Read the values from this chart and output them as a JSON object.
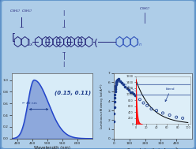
{
  "bg_outer": "#4a7fbf",
  "bg_inner": "#aecde8",
  "bg_inner2": "#c8dff0",
  "plot_bg": "#d8ecf8",
  "dot_color": "#1a3a8a",
  "line_color": "#2244cc",
  "fill_color": "#3355bb",
  "el_peak": 455,
  "cie_text": "(0.15, 0.11)",
  "wavelength_label": "Wavelength (nm)",
  "el_ylabel": "Normalized EL intensity (a.u.)",
  "cd_ylabel": "Luminous efficiency (cd A",
  "cd_xlabel": "Current density (mA cm",
  "blend_text": "blend",
  "inset_bg": "#ddeef8",
  "mol_color": "#1a3a8a",
  "struct_color": "#222277",
  "phox_color": "#3355bb"
}
